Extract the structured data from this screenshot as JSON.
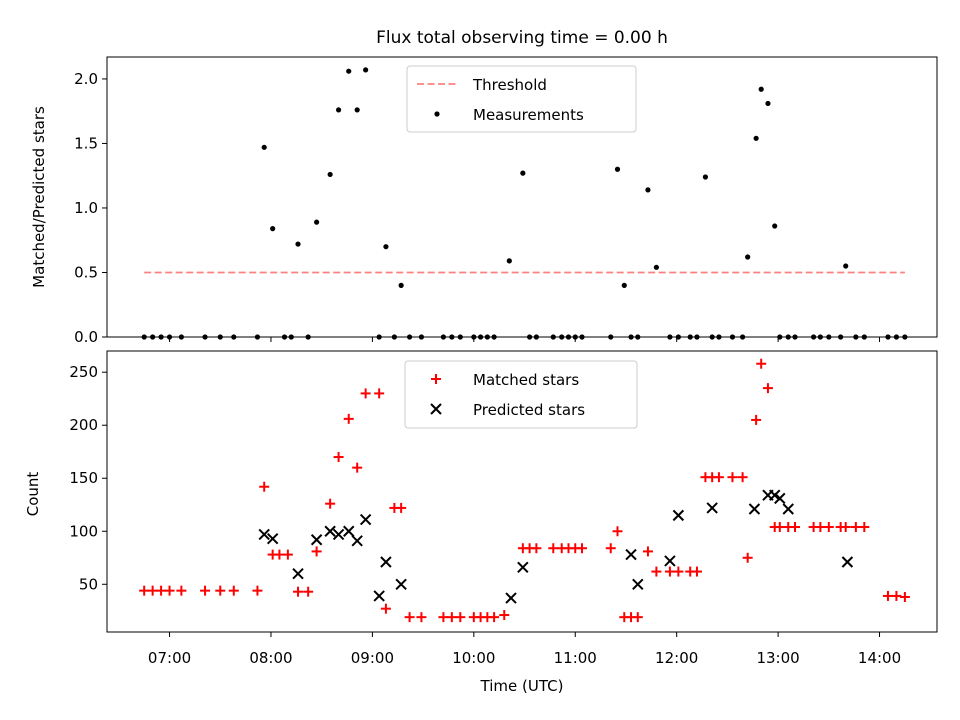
{
  "title": "Flux total observing time = 0.00 h",
  "colors": {
    "threshold": "#ff8080",
    "measurements": "#000000",
    "matched": "#ff0000",
    "predicted": "#000000"
  },
  "chart_data": [
    {
      "type": "scatter",
      "ylabel": "Matched/Predicted stars",
      "ylim": [
        0,
        2.17
      ],
      "xlim": [
        "06:23",
        "14:34"
      ],
      "yticks": [
        "0.0",
        "0.5",
        "1.0",
        "1.5",
        "2.0"
      ],
      "legend": [
        "Threshold",
        "Measurements"
      ],
      "legend_position": "top-center",
      "threshold": {
        "name": "Threshold",
        "y": 0.5,
        "x": [
          "06:45",
          "14:15"
        ]
      },
      "series": [
        {
          "name": "Measurements",
          "x": [
            "06:45",
            "06:50",
            "06:55",
            "07:00",
            "07:07",
            "07:21",
            "07:30",
            "07:38",
            "07:52",
            "07:56",
            "08:01",
            "08:08",
            "08:12",
            "08:16",
            "08:22",
            "08:27",
            "08:35",
            "08:40",
            "08:46",
            "08:51",
            "08:56",
            "09:04",
            "09:08",
            "09:13",
            "09:17",
            "09:22",
            "09:29",
            "09:42",
            "09:47",
            "09:52",
            "10:00",
            "10:04",
            "10:08",
            "10:12",
            "10:21",
            "10:29",
            "10:33",
            "10:37",
            "10:47",
            "10:52",
            "10:56",
            "11:00",
            "11:04",
            "11:21",
            "11:25",
            "11:29",
            "11:33",
            "11:37",
            "11:43",
            "11:48",
            "11:56",
            "12:01",
            "12:08",
            "12:12",
            "12:17",
            "12:21",
            "12:25",
            "12:33",
            "12:39",
            "12:42",
            "12:47",
            "12:50",
            "12:54",
            "12:58",
            "13:01",
            "13:06",
            "13:10",
            "13:21",
            "13:25",
            "13:30",
            "13:37",
            "13:40",
            "13:46",
            "13:51",
            "14:05",
            "14:10",
            "14:15"
          ],
          "y": [
            0,
            0,
            0,
            0,
            0,
            0,
            0,
            0,
            0,
            1.47,
            0.84,
            0,
            0,
            0.72,
            0,
            0.89,
            1.26,
            1.76,
            2.06,
            1.76,
            2.07,
            0,
            0.7,
            0,
            0.4,
            0,
            0,
            0,
            0,
            0,
            0,
            0,
            0,
            0,
            0.59,
            1.27,
            0,
            0,
            0,
            0,
            0,
            0,
            0,
            0,
            1.3,
            0.4,
            0,
            0,
            1.14,
            0.54,
            0,
            0,
            0,
            0,
            1.24,
            0,
            0,
            0,
            0,
            0.62,
            1.54,
            1.92,
            1.81,
            0.86,
            0,
            0,
            0,
            0,
            0,
            0,
            0,
            0.55,
            0,
            0,
            0,
            0,
            0
          ]
        }
      ]
    },
    {
      "type": "scatter",
      "xlabel": "Time (UTC)",
      "ylabel": "Count",
      "ylim": [
        5,
        270
      ],
      "xlim": [
        "06:23",
        "14:34"
      ],
      "xticks": [
        "07:00",
        "08:00",
        "09:00",
        "10:00",
        "11:00",
        "12:00",
        "13:00",
        "14:00"
      ],
      "yticks": [
        "50",
        "100",
        "150",
        "200",
        "250"
      ],
      "legend": [
        "Matched stars",
        "Predicted stars"
      ],
      "legend_position": "top-center",
      "series": [
        {
          "name": "Matched stars",
          "x": [
            "06:45",
            "06:50",
            "06:55",
            "07:00",
            "07:07",
            "07:21",
            "07:30",
            "07:38",
            "07:52",
            "07:56",
            "08:01",
            "08:05",
            "08:10",
            "08:16",
            "08:22",
            "08:27",
            "08:35",
            "08:40",
            "08:46",
            "08:51",
            "08:56",
            "09:04",
            "09:08",
            "09:13",
            "09:17",
            "09:22",
            "09:29",
            "09:42",
            "09:47",
            "09:52",
            "10:00",
            "10:04",
            "10:08",
            "10:12",
            "10:18",
            "10:29",
            "10:33",
            "10:37",
            "10:47",
            "10:52",
            "10:56",
            "11:00",
            "11:04",
            "11:21",
            "11:25",
            "11:29",
            "11:33",
            "11:37",
            "11:43",
            "11:48",
            "11:56",
            "12:01",
            "12:08",
            "12:12",
            "12:17",
            "12:21",
            "12:25",
            "12:33",
            "12:39",
            "12:42",
            "12:47",
            "12:50",
            "12:54",
            "12:58",
            "13:01",
            "13:06",
            "13:10",
            "13:21",
            "13:25",
            "13:30",
            "13:37",
            "13:40",
            "13:46",
            "13:51",
            "14:05",
            "14:10",
            "14:15"
          ],
          "y": [
            44,
            44,
            44,
            44,
            44,
            44,
            44,
            44,
            44,
            142,
            78,
            78,
            78,
            43,
            43,
            81,
            126,
            170,
            206,
            160,
            230,
            230,
            27,
            122,
            122,
            19,
            19,
            19,
            19,
            19,
            19,
            19,
            19,
            19,
            21,
            84,
            84,
            84,
            84,
            84,
            84,
            84,
            84,
            84,
            100,
            19,
            19,
            19,
            81,
            62,
            62,
            62,
            62,
            62,
            151,
            151,
            151,
            151,
            151,
            75,
            205,
            258,
            235,
            104,
            104,
            104,
            104,
            104,
            104,
            104,
            104,
            104,
            104,
            104,
            39,
            39,
            38
          ]
        },
        {
          "name": "Predicted stars",
          "x": [
            "07:56",
            "08:01",
            "08:16",
            "08:27",
            "08:35",
            "08:40",
            "08:46",
            "08:51",
            "08:56",
            "09:04",
            "09:08",
            "09:17",
            "10:22",
            "10:29",
            "11:33",
            "11:37",
            "11:56",
            "12:01",
            "12:21",
            "12:46",
            "12:54",
            "12:58",
            "13:01",
            "13:06",
            "13:41"
          ],
          "y": [
            97,
            93,
            60,
            92,
            100,
            97,
            100,
            91,
            111,
            39,
            71,
            50,
            37,
            66,
            78,
            50,
            72,
            115,
            122,
            121,
            134,
            134,
            131,
            121,
            71
          ]
        }
      ]
    }
  ]
}
